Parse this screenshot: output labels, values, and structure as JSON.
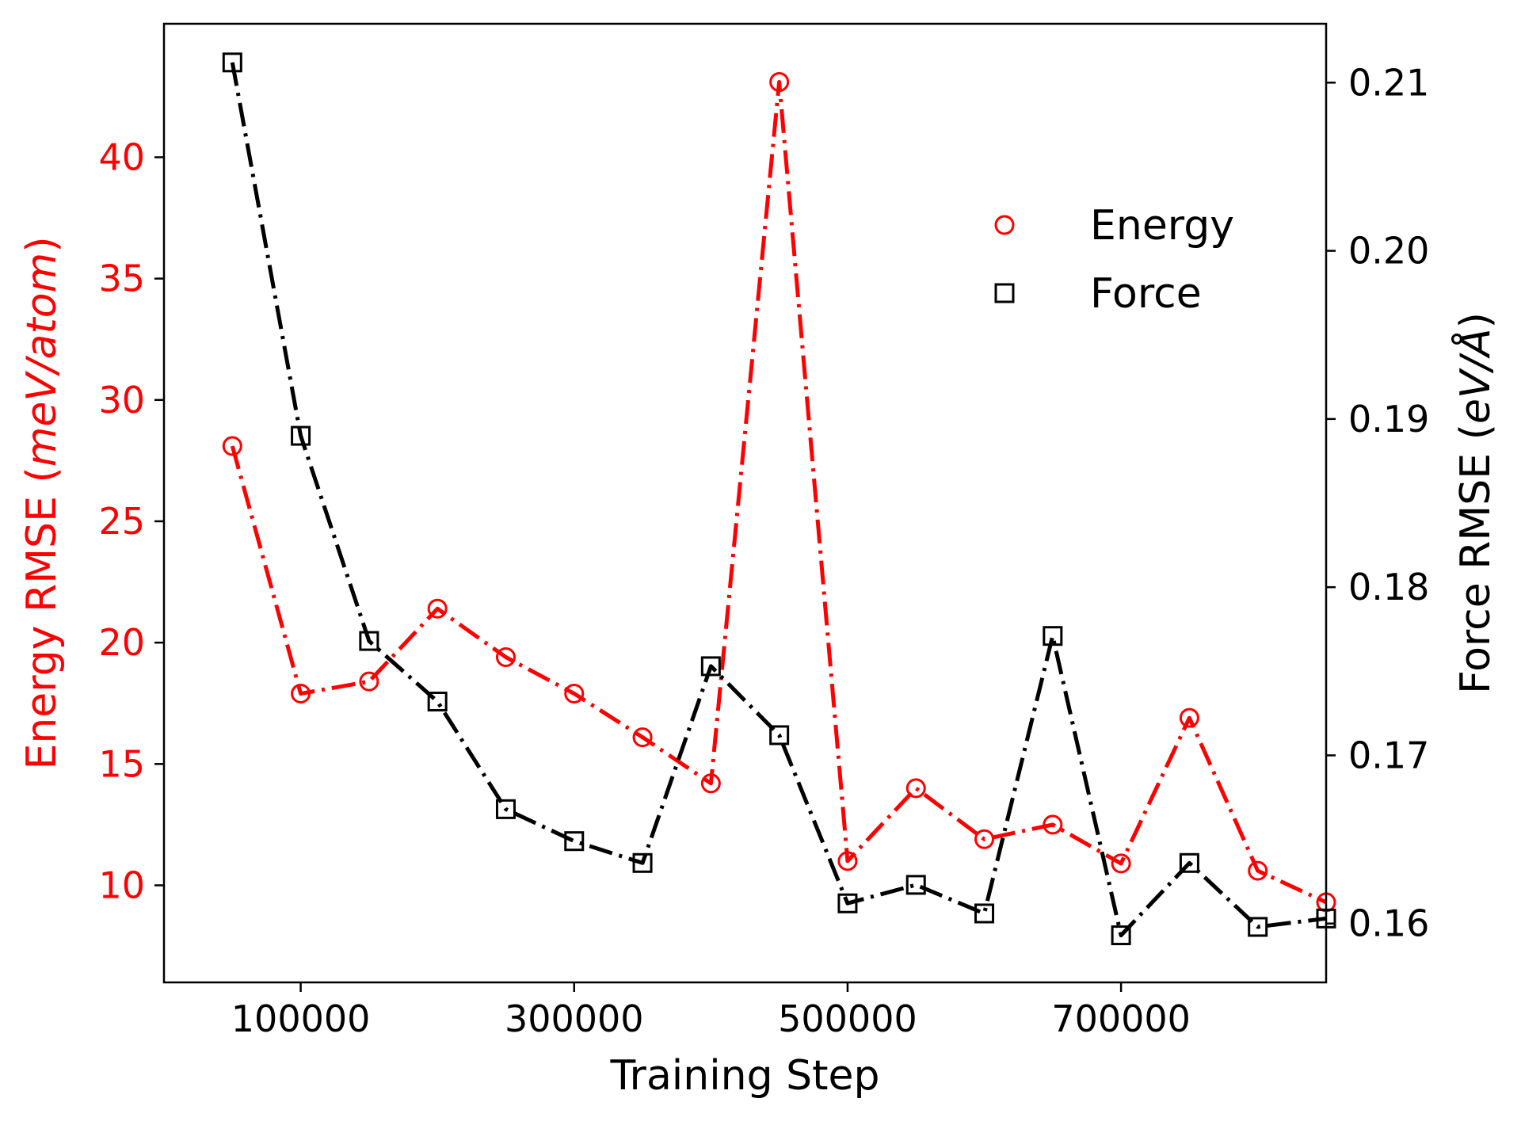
{
  "chart_data": {
    "type": "line",
    "xlabel": "Training Step",
    "ylabel_left": {
      "prefix": "Energy RMSE (",
      "italic": "meV/atom",
      "suffix": ")"
    },
    "ylabel_right": {
      "prefix": "Force RMSE (",
      "italic": "eV/Å",
      "suffix": ")"
    },
    "xlim": [
      0,
      850000
    ],
    "ylim_left": [
      6.0,
      45.5
    ],
    "ylim_right": [
      0.1565,
      0.2135
    ],
    "x_ticks": [
      {
        "value": 100000,
        "label": "100000"
      },
      {
        "value": 300000,
        "label": "300000"
      },
      {
        "value": 500000,
        "label": "500000"
      },
      {
        "value": 700000,
        "label": "700000"
      }
    ],
    "y_ticks_left": [
      {
        "value": 10,
        "label": "10"
      },
      {
        "value": 15,
        "label": "15"
      },
      {
        "value": 20,
        "label": "20"
      },
      {
        "value": 25,
        "label": "25"
      },
      {
        "value": 30,
        "label": "30"
      },
      {
        "value": 35,
        "label": "35"
      },
      {
        "value": 40,
        "label": "40"
      }
    ],
    "y_ticks_right": [
      {
        "value": 0.16,
        "label": "0.16"
      },
      {
        "value": 0.17,
        "label": "0.17"
      },
      {
        "value": 0.18,
        "label": "0.18"
      },
      {
        "value": 0.19,
        "label": "0.19"
      },
      {
        "value": 0.2,
        "label": "0.20"
      },
      {
        "value": 0.21,
        "label": "0.21"
      }
    ],
    "x": [
      50000,
      100000,
      150000,
      200000,
      250000,
      300000,
      350000,
      400000,
      450000,
      500000,
      550000,
      600000,
      650000,
      700000,
      750000,
      800000,
      850000
    ],
    "series": [
      {
        "name": "Energy",
        "axis": "left",
        "color": "#ff0000",
        "marker": "circle",
        "values": [
          28.1,
          17.9,
          18.4,
          21.4,
          19.4,
          17.9,
          16.1,
          14.2,
          43.1,
          11.0,
          14.0,
          11.9,
          12.5,
          10.9,
          16.9,
          10.6,
          9.3
        ]
      },
      {
        "name": "Force",
        "axis": "right",
        "color": "#000000",
        "marker": "square",
        "values": [
          0.2112,
          0.189,
          0.1768,
          0.1732,
          0.1668,
          0.1649,
          0.1636,
          0.1753,
          0.1712,
          0.1612,
          0.1623,
          0.1606,
          0.1771,
          0.1593,
          0.1636,
          0.1598,
          0.1603
        ]
      }
    ],
    "legend": {
      "position": "upper-right"
    },
    "grid": false
  },
  "colors": {
    "energy": "#ff0000",
    "force": "#000000",
    "axes": "#000000",
    "background": "#ffffff"
  }
}
